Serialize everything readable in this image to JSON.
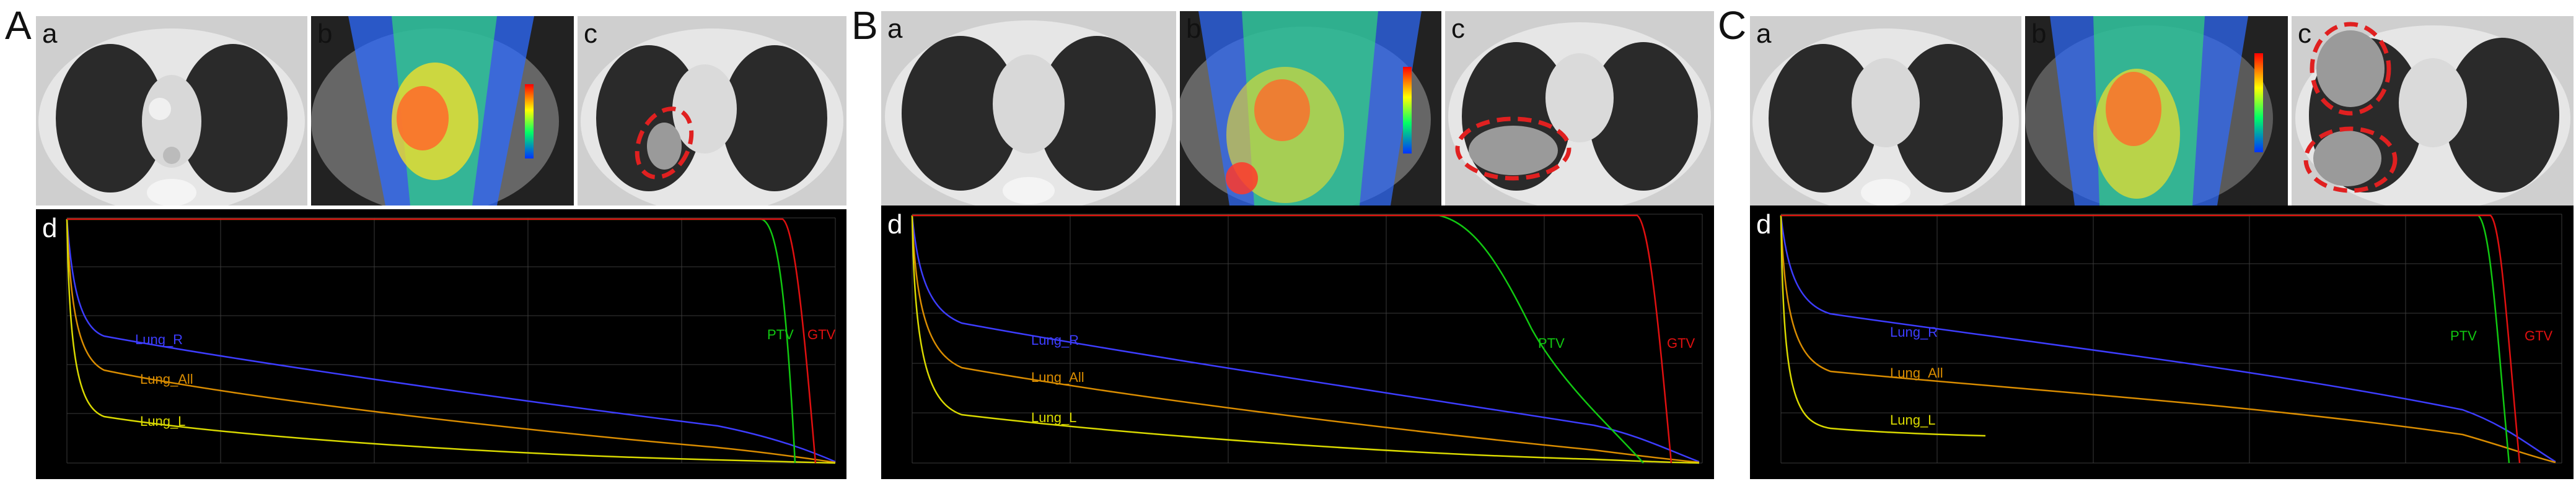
{
  "panels": [
    {
      "label": "A",
      "tiles": {
        "a": "a",
        "b": "b",
        "c": "c",
        "d": "d"
      },
      "dvh": {
        "curves": [
          {
            "name": "Lung_R",
            "color": "#3d3dff"
          },
          {
            "name": "Lung_All",
            "color": "#d98c00"
          },
          {
            "name": "Lung_L",
            "color": "#d9d900"
          },
          {
            "name": "PTV",
            "color": "#11c811"
          },
          {
            "name": "GTV",
            "color": "#e01010"
          }
        ]
      }
    },
    {
      "label": "B",
      "tiles": {
        "a": "a",
        "b": "b",
        "c": "c",
        "d": "d"
      },
      "dvh": {
        "curves": [
          {
            "name": "Lung_R",
            "color": "#3d3dff"
          },
          {
            "name": "Lung_All",
            "color": "#d98c00"
          },
          {
            "name": "Lung_L",
            "color": "#d9d900"
          },
          {
            "name": "PTV",
            "color": "#11c811"
          },
          {
            "name": "GTV",
            "color": "#e01010"
          }
        ]
      }
    },
    {
      "label": "C",
      "tiles": {
        "a": "a",
        "b": "b",
        "c": "c",
        "d": "d"
      },
      "dvh": {
        "curves": [
          {
            "name": "Lung_R",
            "color": "#3d3dff"
          },
          {
            "name": "Lung_All",
            "color": "#d98c00"
          },
          {
            "name": "Lung_L",
            "color": "#d9d900"
          },
          {
            "name": "PTV",
            "color": "#11c811"
          },
          {
            "name": "GTV",
            "color": "#e01010"
          }
        ]
      }
    }
  ]
}
